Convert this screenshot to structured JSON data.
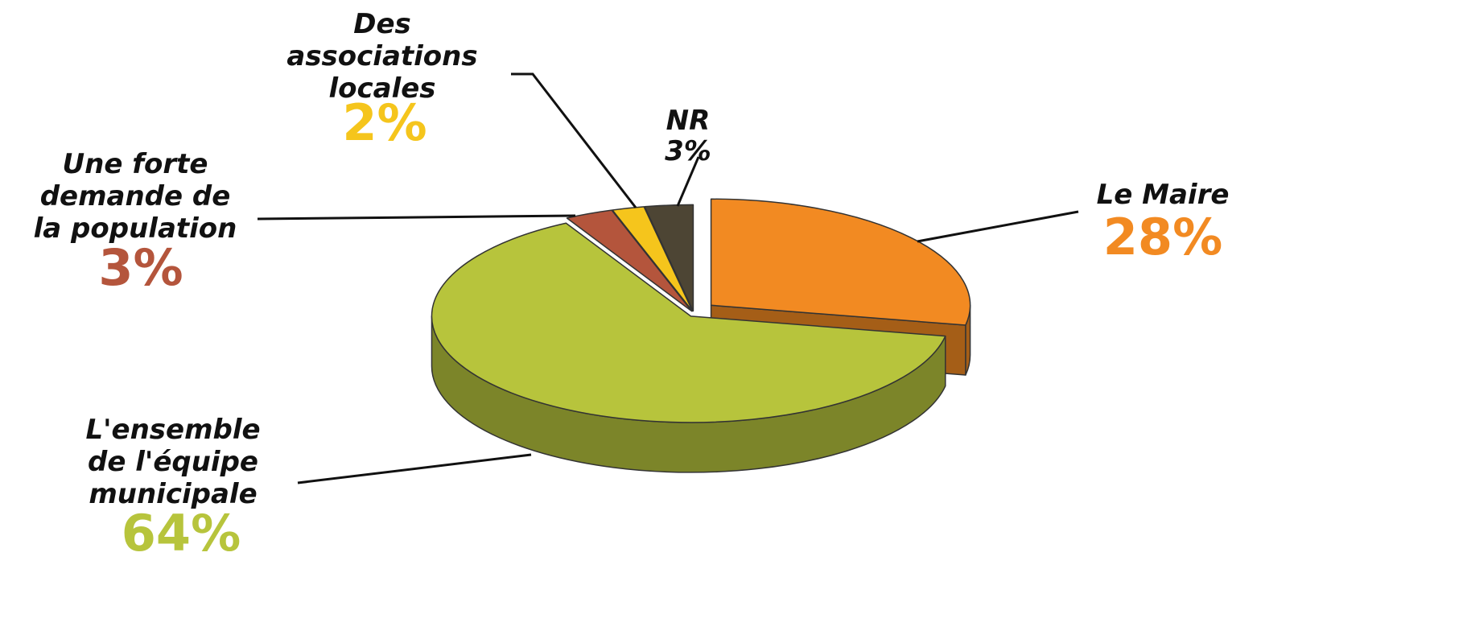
{
  "chart_data": {
    "type": "pie",
    "categories": [
      "Le Maire",
      "L'ensemble\nde l'équipe\nmunicipale",
      "Une forte\ndemande de\nla population",
      "Des\nassociations\nlocales",
      "NR"
    ],
    "values": [
      28,
      64,
      3,
      2,
      3
    ],
    "value_labels": [
      "28%",
      "64%",
      "3%",
      "2%",
      "3%"
    ],
    "colors": [
      "#f28a22",
      "#b7c43c",
      "#b4553c",
      "#f5c51c",
      "#4d4534"
    ]
  }
}
